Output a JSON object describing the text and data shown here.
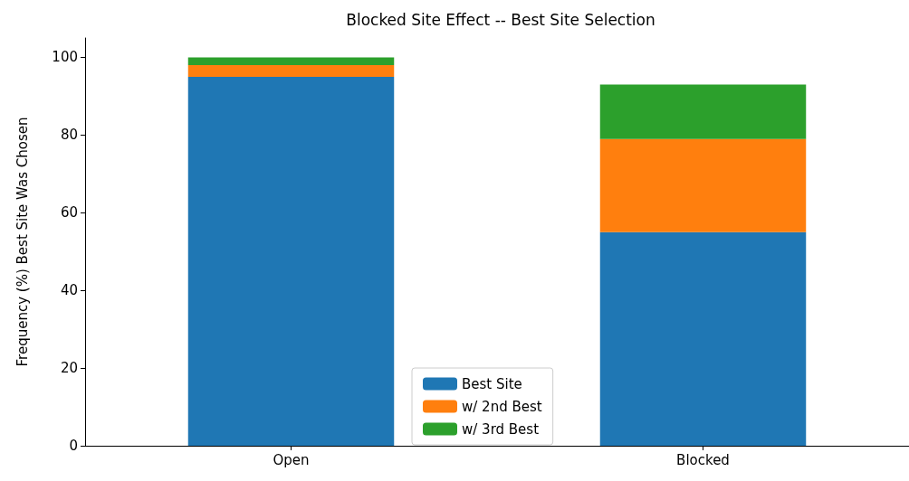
{
  "chart_data": {
    "type": "bar",
    "title": "Blocked Site Effect -- Best Site Selection",
    "ylabel": "Frequency (%) Best Site Was Chosen",
    "categories": [
      "Open",
      "Blocked"
    ],
    "stacked": true,
    "series": [
      {
        "name": "Best Site",
        "color": "#1f77b4",
        "values": [
          95,
          55
        ]
      },
      {
        "name": "w/ 2nd Best",
        "color": "#ff7f0e",
        "values": [
          3,
          24
        ]
      },
      {
        "name": "w/ 3rd Best",
        "color": "#2ca02c",
        "values": [
          2,
          14
        ]
      }
    ],
    "ylim": [
      0,
      105
    ],
    "yticks": [
      0,
      20,
      40,
      60,
      80,
      100
    ],
    "grid": false,
    "legend": "bottom"
  }
}
